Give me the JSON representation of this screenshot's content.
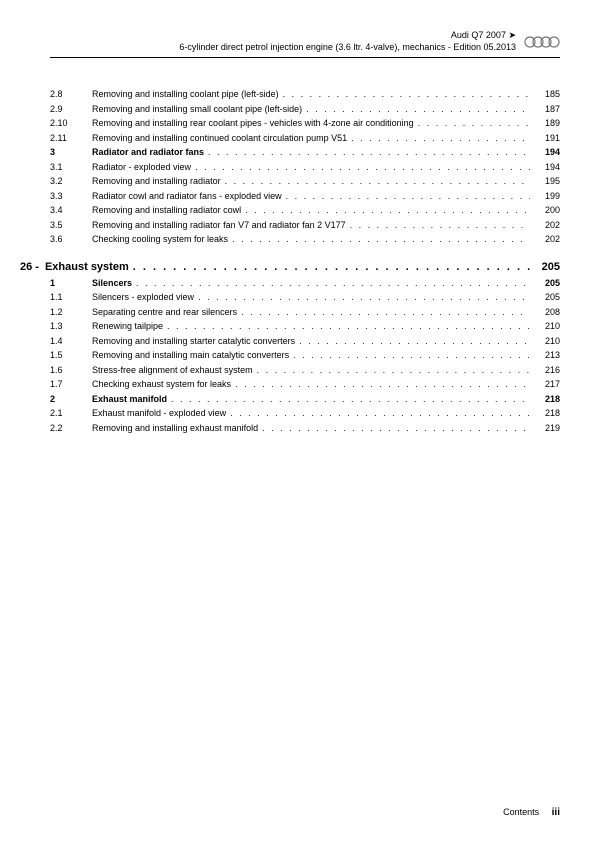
{
  "header": {
    "line1": "Audi Q7 2007 ➤",
    "line2": "6-cylinder direct petrol injection engine (3.6 ltr. 4-valve), mechanics - Edition 05.2013"
  },
  "toc": [
    {
      "type": "item",
      "num": "2.8",
      "title": "Removing and installing coolant pipe (left-side)",
      "page": "185"
    },
    {
      "type": "item",
      "num": "2.9",
      "title": "Removing and installing small coolant pipe (left-side)",
      "page": "187"
    },
    {
      "type": "item",
      "num": "2.10",
      "title": "Removing and installing rear coolant pipes - vehicles with 4-zone air conditioning",
      "page": "189"
    },
    {
      "type": "item",
      "num": "2.11",
      "title": "Removing and installing continued coolant circulation pump V51",
      "page": "191"
    },
    {
      "type": "bold",
      "num": "3",
      "title": "Radiator and radiator fans",
      "page": "194"
    },
    {
      "type": "item",
      "num": "3.1",
      "title": "Radiator - exploded view",
      "page": "194"
    },
    {
      "type": "item",
      "num": "3.2",
      "title": "Removing and installing radiator",
      "page": "195"
    },
    {
      "type": "item",
      "num": "3.3",
      "title": "Radiator cowl and radiator fans - exploded view",
      "page": "199"
    },
    {
      "type": "item",
      "num": "3.4",
      "title": "Removing and installing radiator cowl",
      "page": "200"
    },
    {
      "type": "item",
      "num": "3.5",
      "title": "Removing and installing radiator fan V7 and radiator fan 2 V177",
      "page": "202"
    },
    {
      "type": "item",
      "num": "3.6",
      "title": "Checking cooling system for leaks",
      "page": "202"
    },
    {
      "type": "chapter",
      "num": "26 -",
      "title": "Exhaust system",
      "page": "205"
    },
    {
      "type": "bold",
      "num": "1",
      "title": "Silencers",
      "page": "205"
    },
    {
      "type": "item",
      "num": "1.1",
      "title": "Silencers - exploded view",
      "page": "205"
    },
    {
      "type": "item",
      "num": "1.2",
      "title": "Separating centre and rear silencers",
      "page": "208"
    },
    {
      "type": "item",
      "num": "1.3",
      "title": "Renewing tailpipe",
      "page": "210"
    },
    {
      "type": "item",
      "num": "1.4",
      "title": "Removing and installing starter catalytic converters",
      "page": "210"
    },
    {
      "type": "item",
      "num": "1.5",
      "title": "Removing and installing main catalytic converters",
      "page": "213"
    },
    {
      "type": "item",
      "num": "1.6",
      "title": "Stress-free alignment of exhaust system",
      "page": "216"
    },
    {
      "type": "item",
      "num": "1.7",
      "title": "Checking exhaust system for leaks",
      "page": "217"
    },
    {
      "type": "bold",
      "num": "2",
      "title": "Exhaust manifold",
      "page": "218"
    },
    {
      "type": "item",
      "num": "2.1",
      "title": "Exhaust manifold - exploded view",
      "page": "218"
    },
    {
      "type": "item",
      "num": "2.2",
      "title": "Removing and installing exhaust manifold",
      "page": "219"
    }
  ],
  "footer": {
    "label": "Contents",
    "page": "iii"
  }
}
